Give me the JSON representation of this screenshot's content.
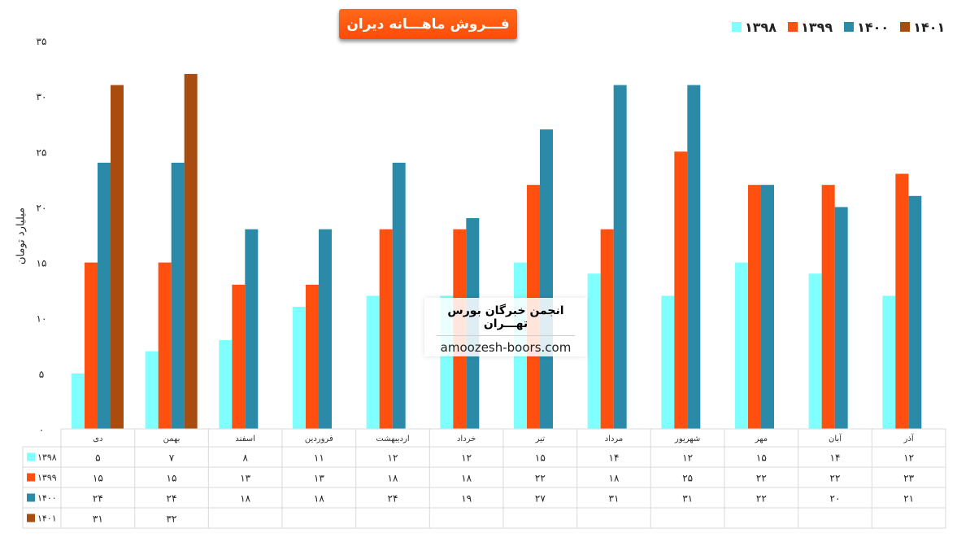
{
  "chart_data": {
    "type": "bar",
    "title": "فـــروش ماهـــانه دیران",
    "ylabel": "میلیارد تومان",
    "ylim": [
      0,
      35
    ],
    "y_ticks": [
      "۰",
      "۵",
      "۱۰",
      "۱۵",
      "۲۰",
      "۲۵",
      "۳۰",
      "۳۵"
    ],
    "legend_position": "top-right",
    "categories": [
      "دی",
      "بهمن",
      "اسفند",
      "فروردین",
      "اردیبهشت",
      "خرداد",
      "تیر",
      "مرداد",
      "شهریور",
      "مهر",
      "آبان",
      "آذر"
    ],
    "series": [
      {
        "name": "۱۳۹۸",
        "color": "#80ffff",
        "values": [
          5,
          7,
          8,
          11,
          12,
          12,
          15,
          14,
          12,
          15,
          14,
          12
        ],
        "labels": [
          "۵",
          "۷",
          "۸",
          "۱۱",
          "۱۲",
          "۱۲",
          "۱۵",
          "۱۴",
          "۱۲",
          "۱۵",
          "۱۴",
          "۱۲"
        ]
      },
      {
        "name": "۱۳۹۹",
        "color": "#ff5010",
        "values": [
          15,
          15,
          13,
          13,
          18,
          18,
          22,
          18,
          25,
          22,
          22,
          23
        ],
        "labels": [
          "۱۵",
          "۱۵",
          "۱۳",
          "۱۳",
          "۱۸",
          "۱۸",
          "۲۲",
          "۱۸",
          "۲۵",
          "۲۲",
          "۲۲",
          "۲۳"
        ]
      },
      {
        "name": "۱۴۰۰",
        "color": "#2a8aa8",
        "values": [
          24,
          24,
          18,
          18,
          24,
          19,
          27,
          31,
          31,
          22,
          20,
          21
        ],
        "labels": [
          "۲۴",
          "۲۴",
          "۱۸",
          "۱۸",
          "۲۴",
          "۱۹",
          "۲۷",
          "۳۱",
          "۳۱",
          "۲۲",
          "۲۰",
          "۲۱"
        ]
      },
      {
        "name": "۱۴۰۱",
        "color": "#a84c10",
        "values": [
          31,
          32,
          null,
          null,
          null,
          null,
          null,
          null,
          null,
          null,
          null,
          null
        ],
        "labels": [
          "۳۱",
          "۳۲",
          "",
          "",
          "",
          "",
          "",
          "",
          "",
          "",
          "",
          ""
        ]
      }
    ]
  },
  "watermark": {
    "title": "انجمن خبرگان بورس تهـــران",
    "url": "amoozesh-boors.com"
  }
}
